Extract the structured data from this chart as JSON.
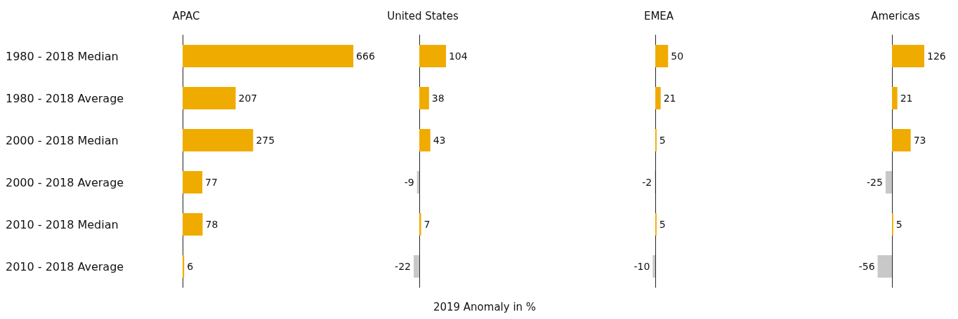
{
  "chart_data": [
    {
      "type": "bar",
      "orientation": "horizontal",
      "title": "APAC",
      "categories": [
        "1980 - 2018 Median",
        "1980 - 2018 Average",
        "2000 - 2018 Median",
        "2000 - 2018 Average",
        "2010 - 2018 Median",
        "2010 - 2018 Average"
      ],
      "values": [
        666,
        207,
        275,
        77,
        78,
        6
      ],
      "colors": [
        "#f0ab00",
        "#f0ab00",
        "#f0ab00",
        "#f0ab00",
        "#f0ab00",
        "#f0ab00"
      ],
      "data_labels": true,
      "tick_labels": "y"
    },
    {
      "type": "bar",
      "orientation": "horizontal",
      "title": "United States",
      "xlabel": "2019 Anomaly in %",
      "categories": [
        null,
        null,
        null,
        null,
        null,
        null
      ],
      "values": [
        104,
        38,
        43,
        -9,
        7,
        -22
      ],
      "colors": [
        "#f0ab00",
        "#f0ab00",
        "#f0ab00",
        "#c8c8c8",
        "#f0ab00",
        "#c8c8c8"
      ],
      "data_labels": true,
      "tick_labels": false
    },
    {
      "type": "bar",
      "orientation": "horizontal",
      "title": "EMEA",
      "categories": [
        null,
        null,
        null,
        null,
        null,
        null
      ],
      "values": [
        50,
        21,
        5,
        -2,
        5,
        -10
      ],
      "colors": [
        "#f0ab00",
        "#f0ab00",
        "#f0ab00",
        "#c8c8c8",
        "#f0ab00",
        "#c8c8c8"
      ],
      "data_labels": true,
      "tick_labels": false
    },
    {
      "type": "bar",
      "orientation": "horizontal",
      "title": "Americas",
      "categories": [
        null,
        null,
        null,
        null,
        null,
        null
      ],
      "values": [
        126,
        21,
        73,
        -25,
        5,
        -56
      ],
      "colors": [
        "#f0ab00",
        "#f0ab00",
        "#f0ab00",
        "#c8c8c8",
        "#f0ab00",
        "#c8c8c8"
      ],
      "data_labels": true,
      "tick_labels": false
    }
  ]
}
